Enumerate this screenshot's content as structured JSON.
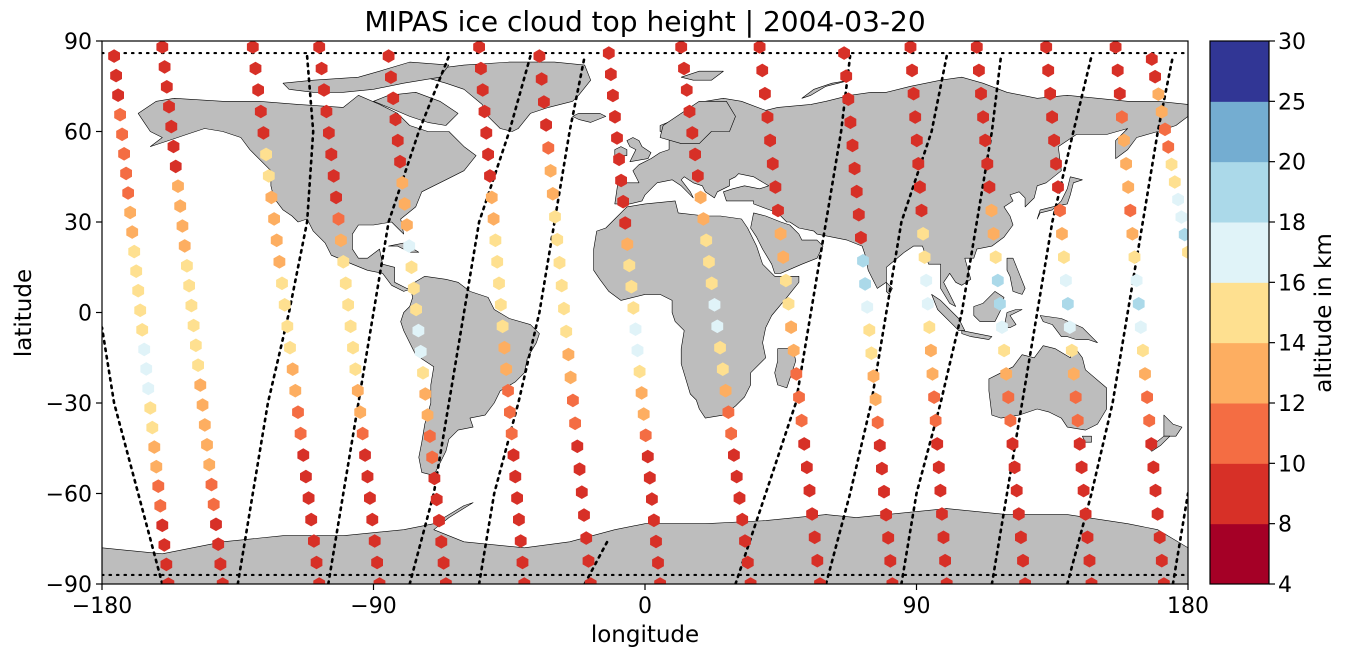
{
  "title": "MIPAS ice cloud top height | 2004-03-20",
  "xlabel": "longitude",
  "ylabel": "latitude",
  "x_ticks": [
    {
      "value": -180,
      "label": "−180"
    },
    {
      "value": -90,
      "label": "−90"
    },
    {
      "value": 0,
      "label": "0"
    },
    {
      "value": 90,
      "label": "90"
    },
    {
      "value": 180,
      "label": "180"
    }
  ],
  "y_ticks": [
    {
      "value": -90,
      "label": "−90"
    },
    {
      "value": -60,
      "label": "−60"
    },
    {
      "value": -30,
      "label": "−30"
    },
    {
      "value": 0,
      "label": "0"
    },
    {
      "value": 30,
      "label": "30"
    },
    {
      "value": 60,
      "label": "60"
    },
    {
      "value": 90,
      "label": "90"
    }
  ],
  "colorbar": {
    "label": "altitude in km",
    "levels": [
      4,
      8,
      10,
      12,
      14,
      16,
      18,
      20,
      25,
      30
    ],
    "tick_labels": [
      "4",
      "8",
      "10",
      "12",
      "14",
      "16",
      "18",
      "20",
      "25",
      "30"
    ],
    "colors": [
      "#a50026",
      "#d73027",
      "#f46d43",
      "#fdae61",
      "#fee090",
      "#e0f3f8",
      "#abd9e9",
      "#74add1",
      "#313695"
    ]
  },
  "map": {
    "land_color": "#bdbdbd",
    "ocean_color": "#ffffff",
    "coastline_color": "#000000"
  },
  "chart_data": {
    "type": "scatter",
    "xlim": [
      -180,
      180
    ],
    "ylim": [
      -90,
      90
    ],
    "grid": false,
    "marker": "hexagon",
    "orbit_tracks": [
      {
        "points": [
          [
            -160,
            -90
          ],
          [
            -168,
            -60
          ],
          [
            -176,
            -30
          ],
          [
            -180,
            -5
          ]
        ]
      },
      {
        "points": [
          [
            -135,
            -90
          ],
          [
            -130,
            -60
          ],
          [
            -125,
            -30
          ],
          [
            -118,
            0
          ],
          [
            -112,
            30
          ],
          [
            -110,
            60
          ],
          [
            -112,
            85
          ]
        ]
      },
      {
        "points": [
          [
            -105,
            -90
          ],
          [
            -100,
            -60
          ],
          [
            -95,
            -30
          ],
          [
            -90,
            0
          ],
          [
            -85,
            30
          ],
          [
            -75,
            60
          ],
          [
            -65,
            85
          ]
        ]
      },
      {
        "points": [
          [
            -78,
            -90
          ],
          [
            -70,
            -60
          ],
          [
            -65,
            -30
          ],
          [
            -60,
            0
          ],
          [
            -55,
            30
          ],
          [
            -45,
            60
          ],
          [
            -38,
            85
          ]
        ]
      },
      {
        "points": [
          [
            -55,
            -90
          ],
          [
            -50,
            -60
          ],
          [
            -42,
            -30
          ],
          [
            -35,
            0
          ],
          [
            -30,
            30
          ],
          [
            -25,
            60
          ],
          [
            -20,
            85
          ]
        ]
      },
      {
        "points": [
          [
            -20,
            -90
          ],
          [
            -12,
            -75
          ]
        ]
      },
      {
        "points": [
          [
            30,
            -90
          ],
          [
            40,
            -60
          ],
          [
            50,
            -30
          ],
          [
            55,
            0
          ],
          [
            60,
            30
          ],
          [
            65,
            60
          ],
          [
            68,
            85
          ]
        ]
      },
      {
        "points": [
          [
            60,
            -90
          ],
          [
            68,
            -60
          ],
          [
            75,
            -30
          ],
          [
            80,
            0
          ],
          [
            85,
            30
          ],
          [
            95,
            60
          ],
          [
            100,
            85
          ]
        ]
      },
      {
        "points": [
          [
            85,
            -90
          ],
          [
            90,
            -60
          ],
          [
            98,
            -30
          ],
          [
            105,
            0
          ],
          [
            110,
            30
          ],
          [
            115,
            60
          ],
          [
            118,
            85
          ]
        ]
      },
      {
        "points": [
          [
            115,
            -90
          ],
          [
            120,
            -60
          ],
          [
            125,
            -30
          ],
          [
            130,
            0
          ],
          [
            135,
            30
          ],
          [
            142,
            60
          ],
          [
            148,
            85
          ]
        ]
      },
      {
        "points": [
          [
            140,
            -90
          ],
          [
            148,
            -60
          ],
          [
            155,
            -30
          ],
          [
            160,
            0
          ],
          [
            165,
            30
          ],
          [
            170,
            60
          ],
          [
            175,
            85
          ]
        ]
      },
      {
        "points": [
          [
            175,
            -90
          ],
          [
            180,
            -60
          ]
        ]
      }
    ],
    "measurement_tracks": [
      {
        "start": [
          -176,
          85
        ],
        "end": [
          -158,
          -90
        ],
        "values": [
          8,
          8,
          8,
          10,
          10,
          10,
          10,
          10,
          12,
          12,
          14,
          14,
          14,
          15,
          15,
          16,
          17,
          17,
          14,
          14,
          12,
          12,
          10,
          10,
          8,
          8,
          8,
          8
        ]
      },
      {
        "start": [
          -160,
          88
        ],
        "end": [
          -140,
          -90
        ],
        "values": [
          8,
          8,
          8,
          8,
          8,
          8,
          8,
          12,
          12,
          12,
          12,
          14,
          14,
          14,
          14,
          14,
          14,
          12,
          12,
          12,
          12,
          12,
          10,
          10,
          8,
          8,
          8,
          8
        ]
      },
      {
        "start": [
          -130,
          88
        ],
        "end": [
          -108,
          -90
        ],
        "values": [
          8,
          8,
          8,
          8,
          8,
          14,
          14,
          12,
          12,
          12,
          12,
          14,
          14,
          14,
          14,
          12,
          12,
          10,
          10,
          8,
          8,
          8,
          8,
          8,
          8,
          8
        ]
      },
      {
        "start": [
          -108,
          88
        ],
        "end": [
          -88,
          -90
        ],
        "values": [
          8,
          8,
          8,
          8,
          8,
          8,
          8,
          8,
          10,
          12,
          14,
          14,
          14,
          14,
          14,
          14,
          12,
          12,
          10,
          8,
          8,
          8,
          8,
          8,
          8,
          8
        ]
      },
      {
        "start": [
          -85,
          85
        ],
        "end": [
          -66,
          -90
        ],
        "values": [
          8,
          8,
          8,
          8,
          8,
          8,
          12,
          12,
          12,
          16,
          14,
          14,
          14,
          16,
          16,
          14,
          12,
          12,
          10,
          10,
          8,
          8,
          8,
          8,
          8,
          8
        ]
      },
      {
        "start": [
          -55,
          88
        ],
        "end": [
          -40,
          -90
        ],
        "values": [
          8,
          8,
          8,
          8,
          8,
          8,
          8,
          12,
          12,
          14,
          14,
          14,
          14,
          14,
          12,
          12,
          10,
          10,
          10,
          8,
          8,
          8,
          8,
          8,
          8,
          8
        ]
      },
      {
        "start": [
          -35,
          85
        ],
        "end": [
          -18,
          -90
        ],
        "values": [
          8,
          8,
          8,
          8,
          10,
          12,
          12,
          14,
          14,
          14,
          14,
          14,
          14,
          12,
          12,
          10,
          10,
          8,
          8,
          8,
          8,
          8,
          8,
          8
        ]
      },
      {
        "start": [
          -12,
          86
        ],
        "end": [
          5,
          -90
        ],
        "values": [
          8,
          8,
          8,
          8,
          8,
          8,
          8,
          8,
          8,
          12,
          14,
          14,
          14,
          16,
          16,
          14,
          12,
          12,
          10,
          8,
          8,
          8,
          8,
          8,
          8,
          8
        ]
      },
      {
        "start": [
          12,
          88
        ],
        "end": [
          35,
          -90
        ],
        "values": [
          8,
          8,
          8,
          8,
          8,
          8,
          8,
          12,
          12,
          14,
          14,
          14,
          16,
          16,
          14,
          14,
          12,
          10,
          10,
          8,
          8,
          8,
          8,
          8,
          8,
          8
        ]
      },
      {
        "start": [
          38,
          88
        ],
        "end": [
          58,
          -90
        ],
        "values": [
          8,
          8,
          8,
          8,
          8,
          8,
          8,
          8,
          12,
          12,
          14,
          14,
          12,
          12,
          10,
          10,
          10,
          8,
          8,
          8,
          8,
          8,
          8,
          8
        ]
      },
      {
        "start": [
          66,
          86
        ],
        "end": [
          82,
          -90
        ],
        "values": [
          8,
          8,
          8,
          8,
          8,
          8,
          8,
          8,
          8,
          18,
          18,
          16,
          14,
          14,
          12,
          12,
          10,
          8,
          8,
          8,
          8,
          8,
          8,
          8
        ]
      },
      {
        "start": [
          88,
          88
        ],
        "end": [
          100,
          -90
        ],
        "values": [
          8,
          8,
          8,
          8,
          8,
          8,
          8,
          8,
          14,
          14,
          16,
          16,
          14,
          12,
          12,
          10,
          10,
          8,
          8,
          8,
          8,
          8,
          8,
          8
        ]
      },
      {
        "start": [
          110,
          88
        ],
        "end": [
          126,
          -90
        ],
        "values": [
          8,
          8,
          8,
          8,
          8,
          8,
          8,
          12,
          12,
          14,
          18,
          18,
          16,
          14,
          12,
          10,
          10,
          8,
          8,
          8,
          8,
          8,
          8,
          8
        ]
      },
      {
        "start": [
          133,
          88
        ],
        "end": [
          148,
          -90
        ],
        "values": [
          8,
          8,
          8,
          8,
          8,
          8,
          8,
          10,
          12,
          14,
          16,
          18,
          16,
          14,
          12,
          10,
          10,
          8,
          8,
          8,
          8,
          8,
          8,
          8
        ]
      },
      {
        "start": [
          156,
          88
        ],
        "end": [
          172,
          -90
        ],
        "values": [
          8,
          8,
          8,
          10,
          12,
          12,
          12,
          10,
          12,
          14,
          16,
          18,
          16,
          14,
          12,
          10,
          10,
          8,
          8,
          8,
          8,
          8,
          8,
          8
        ]
      },
      {
        "start": [
          168,
          84
        ],
        "end": [
          180,
          20
        ],
        "values": [
          8,
          8,
          12,
          12,
          10,
          10,
          14,
          14,
          16,
          16,
          18,
          14
        ]
      }
    ]
  }
}
